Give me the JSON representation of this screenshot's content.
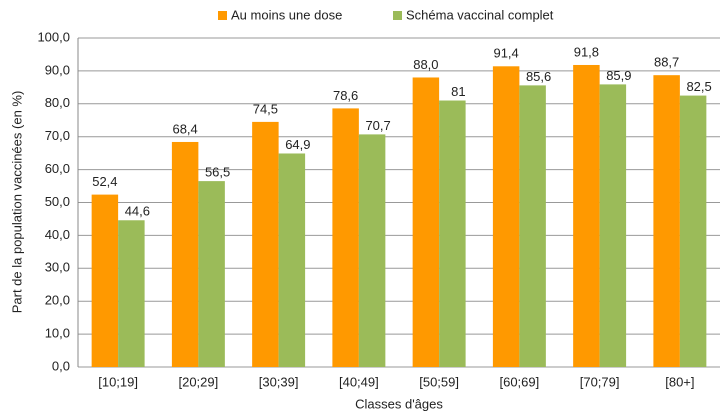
{
  "chart_data": {
    "type": "bar",
    "x_label": "Classes d'âges",
    "y_label": "Part de la population vaccinées (en %)",
    "categories": [
      "[10;19]",
      "[20;29]",
      "[30;39]",
      "[40;49]",
      "[50;59]",
      "[60;69]",
      "[70;79]",
      "[80+]"
    ],
    "series": [
      {
        "name": "Au moins une dose",
        "color": "#ff9900",
        "values": [
          52.4,
          68.4,
          74.5,
          78.6,
          88.0,
          91.4,
          91.8,
          88.7
        ],
        "value_labels": [
          "52,4",
          "68,4",
          "74,5",
          "78,6",
          "88,0",
          "91,4",
          "91,8",
          "88,7"
        ]
      },
      {
        "name": "Schéma vaccinal complet",
        "color": "#9bbb59",
        "values": [
          44.6,
          56.5,
          64.9,
          70.7,
          81,
          85.6,
          85.9,
          82.5
        ],
        "value_labels": [
          "44,6",
          "56,5",
          "64,9",
          "70,7",
          "81",
          "85,6",
          "85,9",
          "82,5"
        ]
      }
    ],
    "ylim": [
      0,
      100
    ],
    "yticks": [
      {
        "value": 0,
        "label": "0,0"
      },
      {
        "value": 10,
        "label": "10,0"
      },
      {
        "value": 20,
        "label": "20,0"
      },
      {
        "value": 30,
        "label": "30,0"
      },
      {
        "value": 40,
        "label": "40,0"
      },
      {
        "value": 50,
        "label": "50,0"
      },
      {
        "value": 60,
        "label": "60,0"
      },
      {
        "value": 70,
        "label": "70,0"
      },
      {
        "value": 80,
        "label": "80,0"
      },
      {
        "value": 90,
        "label": "90,0"
      },
      {
        "value": 100,
        "label": "100,0"
      }
    ],
    "grid": true,
    "legend": "top"
  }
}
